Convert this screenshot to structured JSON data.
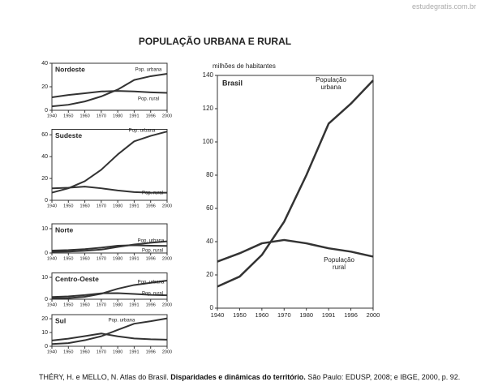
{
  "title": "POPULAÇÃO URBANA E RURAL",
  "watermark": "estudegratis.com.br",
  "caption": {
    "author": "THÉRY, H. e MELLO, N. Atlas do Brasil.",
    "bold": "Disparidades e dinâmicas do território.",
    "rest": "São Paulo: EDUSP, 2008; e IBGE, 2000, p. 92."
  },
  "chart_data": [
    {
      "type": "line",
      "title": "Nordeste",
      "ylim": [
        0,
        40
      ],
      "yticks": [
        0,
        20,
        40
      ],
      "categories": [
        "1940",
        "1950",
        "1960",
        "1970",
        "1980",
        "1991",
        "1996",
        "2000"
      ],
      "series": [
        {
          "name": "Pop. urbana",
          "color": "#333333",
          "values": [
            3.4,
            4.7,
            7.5,
            11.8,
            17.6,
            25.8,
            29,
            31
          ]
        },
        {
          "name": "Pop. rural",
          "color": "#333333",
          "values": [
            11,
            13,
            14.5,
            16,
            16.5,
            16,
            15.3,
            14.8
          ]
        }
      ]
    },
    {
      "type": "line",
      "title": "Sudeste",
      "ylim": [
        0,
        65
      ],
      "yticks": [
        0,
        20,
        40,
        60
      ],
      "categories": [
        "1940",
        "1950",
        "1960",
        "1970",
        "1980",
        "1991",
        "1996",
        "2000"
      ],
      "series": [
        {
          "name": "Pop. urbana",
          "color": "#333333",
          "values": [
            7,
            11,
            17.5,
            28,
            42,
            54,
            59,
            63
          ]
        },
        {
          "name": "Pop. rural",
          "color": "#333333",
          "values": [
            11,
            11.5,
            12.5,
            11,
            9,
            7.5,
            7,
            7
          ]
        }
      ]
    },
    {
      "type": "line",
      "title": "Norte",
      "ylim": [
        0,
        12
      ],
      "yticks": [
        0,
        10
      ],
      "categories": [
        "1940",
        "1950",
        "1960",
        "1970",
        "1980",
        "1991",
        "1996",
        "2000"
      ],
      "series": [
        {
          "name": "Pop. urbana",
          "color": "#333333",
          "values": [
            0.5,
            0.6,
            0.9,
            1.4,
            2.5,
            3.5,
            4.2,
            4.8
          ]
        },
        {
          "name": "Pop. rural",
          "color": "#333333",
          "values": [
            1,
            1.2,
            1.6,
            2.2,
            3,
            3.2,
            3,
            2.9
          ]
        }
      ]
    },
    {
      "type": "line",
      "title": "Centro-Oeste",
      "ylim": [
        0,
        12
      ],
      "yticks": [
        0,
        10
      ],
      "categories": [
        "1940",
        "1950",
        "1960",
        "1970",
        "1980",
        "1991",
        "1996",
        "2000"
      ],
      "series": [
        {
          "name": "Pop. urbana",
          "color": "#333333",
          "values": [
            0.4,
            0.5,
            1.1,
            2.5,
            4.8,
            6.5,
            7.5,
            8.5
          ]
        },
        {
          "name": "Pop. rural",
          "color": "#333333",
          "values": [
            1,
            1.3,
            1.9,
            2.7,
            2.8,
            2.4,
            2,
            1.8
          ]
        }
      ]
    },
    {
      "type": "line",
      "title": "Sul",
      "ylim": [
        0,
        23
      ],
      "yticks": [
        0,
        10,
        20
      ],
      "categories": [
        "1940",
        "1950",
        "1960",
        "1970",
        "1980",
        "1991",
        "1996",
        "2000"
      ],
      "series": [
        {
          "name": "Pop. urbana",
          "color": "#333333",
          "values": [
            1.6,
            2.3,
            4.4,
            7.3,
            11.9,
            16.4,
            18.2,
            20.3
          ]
        },
        {
          "color": "#333333",
          "values": [
            4.2,
            5.5,
            7.4,
            9.3,
            7.2,
            5.7,
            5.1,
            4.8
          ]
        }
      ]
    },
    {
      "type": "line",
      "title": "Brasil",
      "y_label": "milhões de habitantes",
      "ylim": [
        0,
        140
      ],
      "yticks": [
        0,
        20,
        40,
        60,
        80,
        100,
        120,
        140
      ],
      "categories": [
        "1940",
        "1950",
        "1960",
        "1970",
        "1980",
        "1991",
        "1996",
        "2000"
      ],
      "series": [
        {
          "name": "População urbana",
          "color": "#333333",
          "values": [
            13,
            19,
            32,
            52,
            80,
            111,
            123,
            137
          ]
        },
        {
          "name": "População rural",
          "color": "#333333",
          "values": [
            28,
            33,
            39,
            41,
            39,
            36,
            34,
            31
          ]
        }
      ]
    }
  ]
}
